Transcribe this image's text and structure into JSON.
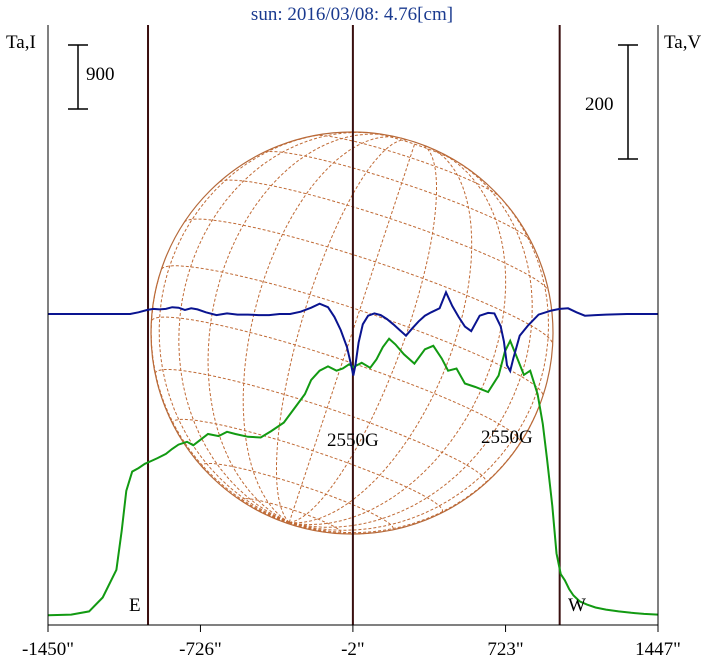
{
  "chart_data": {
    "type": "line",
    "title": "sun: 2016/03/08: 4.76[cm]",
    "xlim": [
      -1500,
      1500
    ],
    "x_ticks": [
      -1450,
      -726,
      -2,
      723,
      1447
    ],
    "x_tick_labels": [
      "-1450\"",
      "-726\"",
      "-2\"",
      "723\"",
      "1447\""
    ],
    "left_axis_label": "Ta,I",
    "right_axis_label": "Ta,V",
    "scale_bar_left": "900",
    "scale_bar_right": "200",
    "limb_labels": {
      "east": "E",
      "west": "W"
    },
    "annotations": [
      "2550G",
      "2550G"
    ],
    "grid": false,
    "series": [
      {
        "name": "Ta,I",
        "color": "#129a12",
        "x": [
          -1450,
          -1340,
          -1255,
          -1190,
          -1125,
          -1100,
          -1078,
          -1050,
          -1020,
          -990,
          -960,
          -930,
          -890,
          -860,
          -830,
          -790,
          -760,
          -730,
          -690,
          -640,
          -600,
          -560,
          -500,
          -440,
          -390,
          -330,
          -270,
          -230,
          -200,
          -160,
          -120,
          -80,
          -50,
          -20,
          0,
          40,
          80,
          110,
          140,
          170,
          200,
          240,
          290,
          340,
          380,
          420,
          450,
          490,
          530,
          580,
          640,
          690,
          720,
          745,
          775,
          810,
          840,
          875,
          900,
          920,
          945,
          965,
          985,
          1005,
          1025,
          1045,
          1075,
          1110,
          1150,
          1200,
          1260,
          1320,
          1380,
          1447
        ],
        "values": [
          10,
          20,
          65,
          260,
          650,
          1200,
          1760,
          2030,
          2080,
          2140,
          2180,
          2220,
          2280,
          2350,
          2410,
          2450,
          2400,
          2470,
          2560,
          2530,
          2590,
          2560,
          2520,
          2510,
          2600,
          2720,
          2960,
          3120,
          3320,
          3450,
          3510,
          3450,
          3480,
          3540,
          3500,
          3560,
          3490,
          3610,
          3780,
          3900,
          3820,
          3680,
          3550,
          3750,
          3800,
          3620,
          3450,
          3480,
          3270,
          3220,
          3150,
          3380,
          3720,
          3870,
          3650,
          3390,
          3450,
          3120,
          2700,
          2210,
          1550,
          880,
          590,
          500,
          380,
          290,
          205,
          160,
          120,
          90,
          65,
          45,
          30,
          20
        ]
      },
      {
        "name": "Ta,V",
        "color": "#0a1490",
        "x": [
          -1450,
          -1300,
          -1150,
          -1060,
          -1020,
          -980,
          -950,
          -920,
          -890,
          -860,
          -830,
          -800,
          -770,
          -740,
          -700,
          -650,
          -600,
          -550,
          -500,
          -450,
          -400,
          -350,
          -300,
          -250,
          -200,
          -160,
          -120,
          -90,
          -60,
          -30,
          -10,
          0,
          10,
          25,
          45,
          70,
          100,
          130,
          160,
          190,
          220,
          250,
          280,
          310,
          340,
          370,
          410,
          440,
          470,
          500,
          530,
          560,
          600,
          640,
          670,
          700,
          715,
          730,
          745,
          760,
          790,
          830,
          880,
          940,
          980,
          1020,
          1060,
          1100,
          1150,
          1200,
          1300,
          1447
        ],
        "values": [
          0,
          0,
          0,
          0,
          3,
          7,
          9,
          8,
          9,
          12,
          11,
          7,
          10,
          8,
          3,
          -2,
          1,
          -1,
          -1,
          -2,
          -2,
          0,
          0,
          4,
          11,
          18,
          12,
          -5,
          -28,
          -58,
          -90,
          -108,
          -90,
          -50,
          -18,
          -3,
          1,
          -2,
          -9,
          -18,
          -28,
          -38,
          -25,
          -13,
          -3,
          3,
          10,
          38,
          14,
          -5,
          -22,
          -30,
          -3,
          2,
          1,
          -22,
          -48,
          -90,
          -100,
          -78,
          -38,
          -20,
          -1,
          6,
          9,
          10,
          3,
          -3,
          -2,
          -1,
          0,
          0
        ]
      }
    ]
  }
}
